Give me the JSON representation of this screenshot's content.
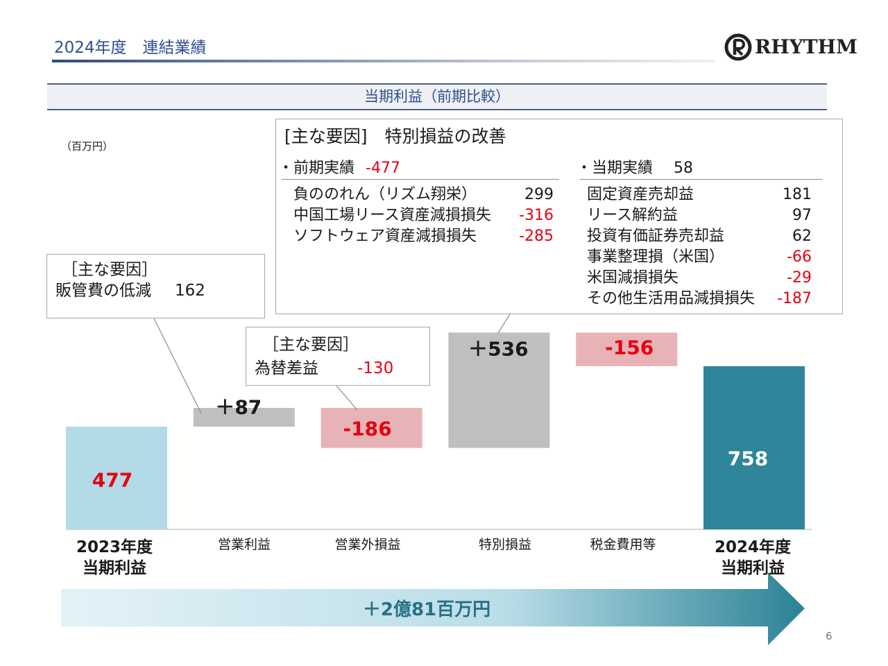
{
  "header": {
    "title": "2024年度　連結業績"
  },
  "logo": {
    "text": "RHYTHM"
  },
  "section_title": "当期利益（前期比較）",
  "unit": "（百万円）",
  "colors": {
    "heading": "#2f4f8f",
    "negative": "#e60012",
    "summary_text": "#2a7085"
  },
  "callouts": {
    "sga": {
      "heading": "［主な要因］",
      "label": "販管費の低減",
      "value": "162"
    },
    "fx": {
      "heading": "［主な要因］",
      "label": "為替差益",
      "value": "-130"
    },
    "extraordinary": {
      "heading": "[主な要因]　特別損益の改善",
      "prior": {
        "label": "・前期実績",
        "value": "-477",
        "items": [
          {
            "name": "負ののれん（リズム翔栄）",
            "value": "299"
          },
          {
            "name": "中国工場リース資産減損損失",
            "value": "-316"
          },
          {
            "name": "ソフトウェア資産減損損失",
            "value": "-285"
          }
        ]
      },
      "current": {
        "label": "・当期実績",
        "value": "58",
        "items": [
          {
            "name": "固定資産売却益",
            "value": "181"
          },
          {
            "name": "リース解約益",
            "value": "97"
          },
          {
            "name": "投資有価証券売却益",
            "value": "62"
          },
          {
            "name": "事業整理損（米国）",
            "value": "-66"
          },
          {
            "name": "米国減損損失",
            "value": "-29"
          },
          {
            "name": "その他生活用品減損損失",
            "value": "-187"
          }
        ]
      }
    }
  },
  "chart_data": {
    "type": "bar",
    "waterfall": true,
    "categories": [
      "2023年度\n当期利益",
      "営業利益",
      "営業外損益",
      "特別損益",
      "税金費用等",
      "2024年度\n当期利益"
    ],
    "values": [
      477,
      87,
      -186,
      536,
      -156,
      758
    ],
    "labels": [
      "477",
      "＋87",
      "-186",
      "＋536",
      "-156",
      "758"
    ],
    "bar_colors": [
      "#b2dbe7",
      "#bfbfbf",
      "#e7b3b6",
      "#bfbfbf",
      "#e7b3b6",
      "#2f8599"
    ],
    "label_colors": [
      "#e60012",
      "#1a1a1a",
      "#e60012",
      "#1a1a1a",
      "#e60012",
      "#ffffff"
    ]
  },
  "summary": {
    "change_label": "＋2億81百万円"
  },
  "page_number": "6"
}
